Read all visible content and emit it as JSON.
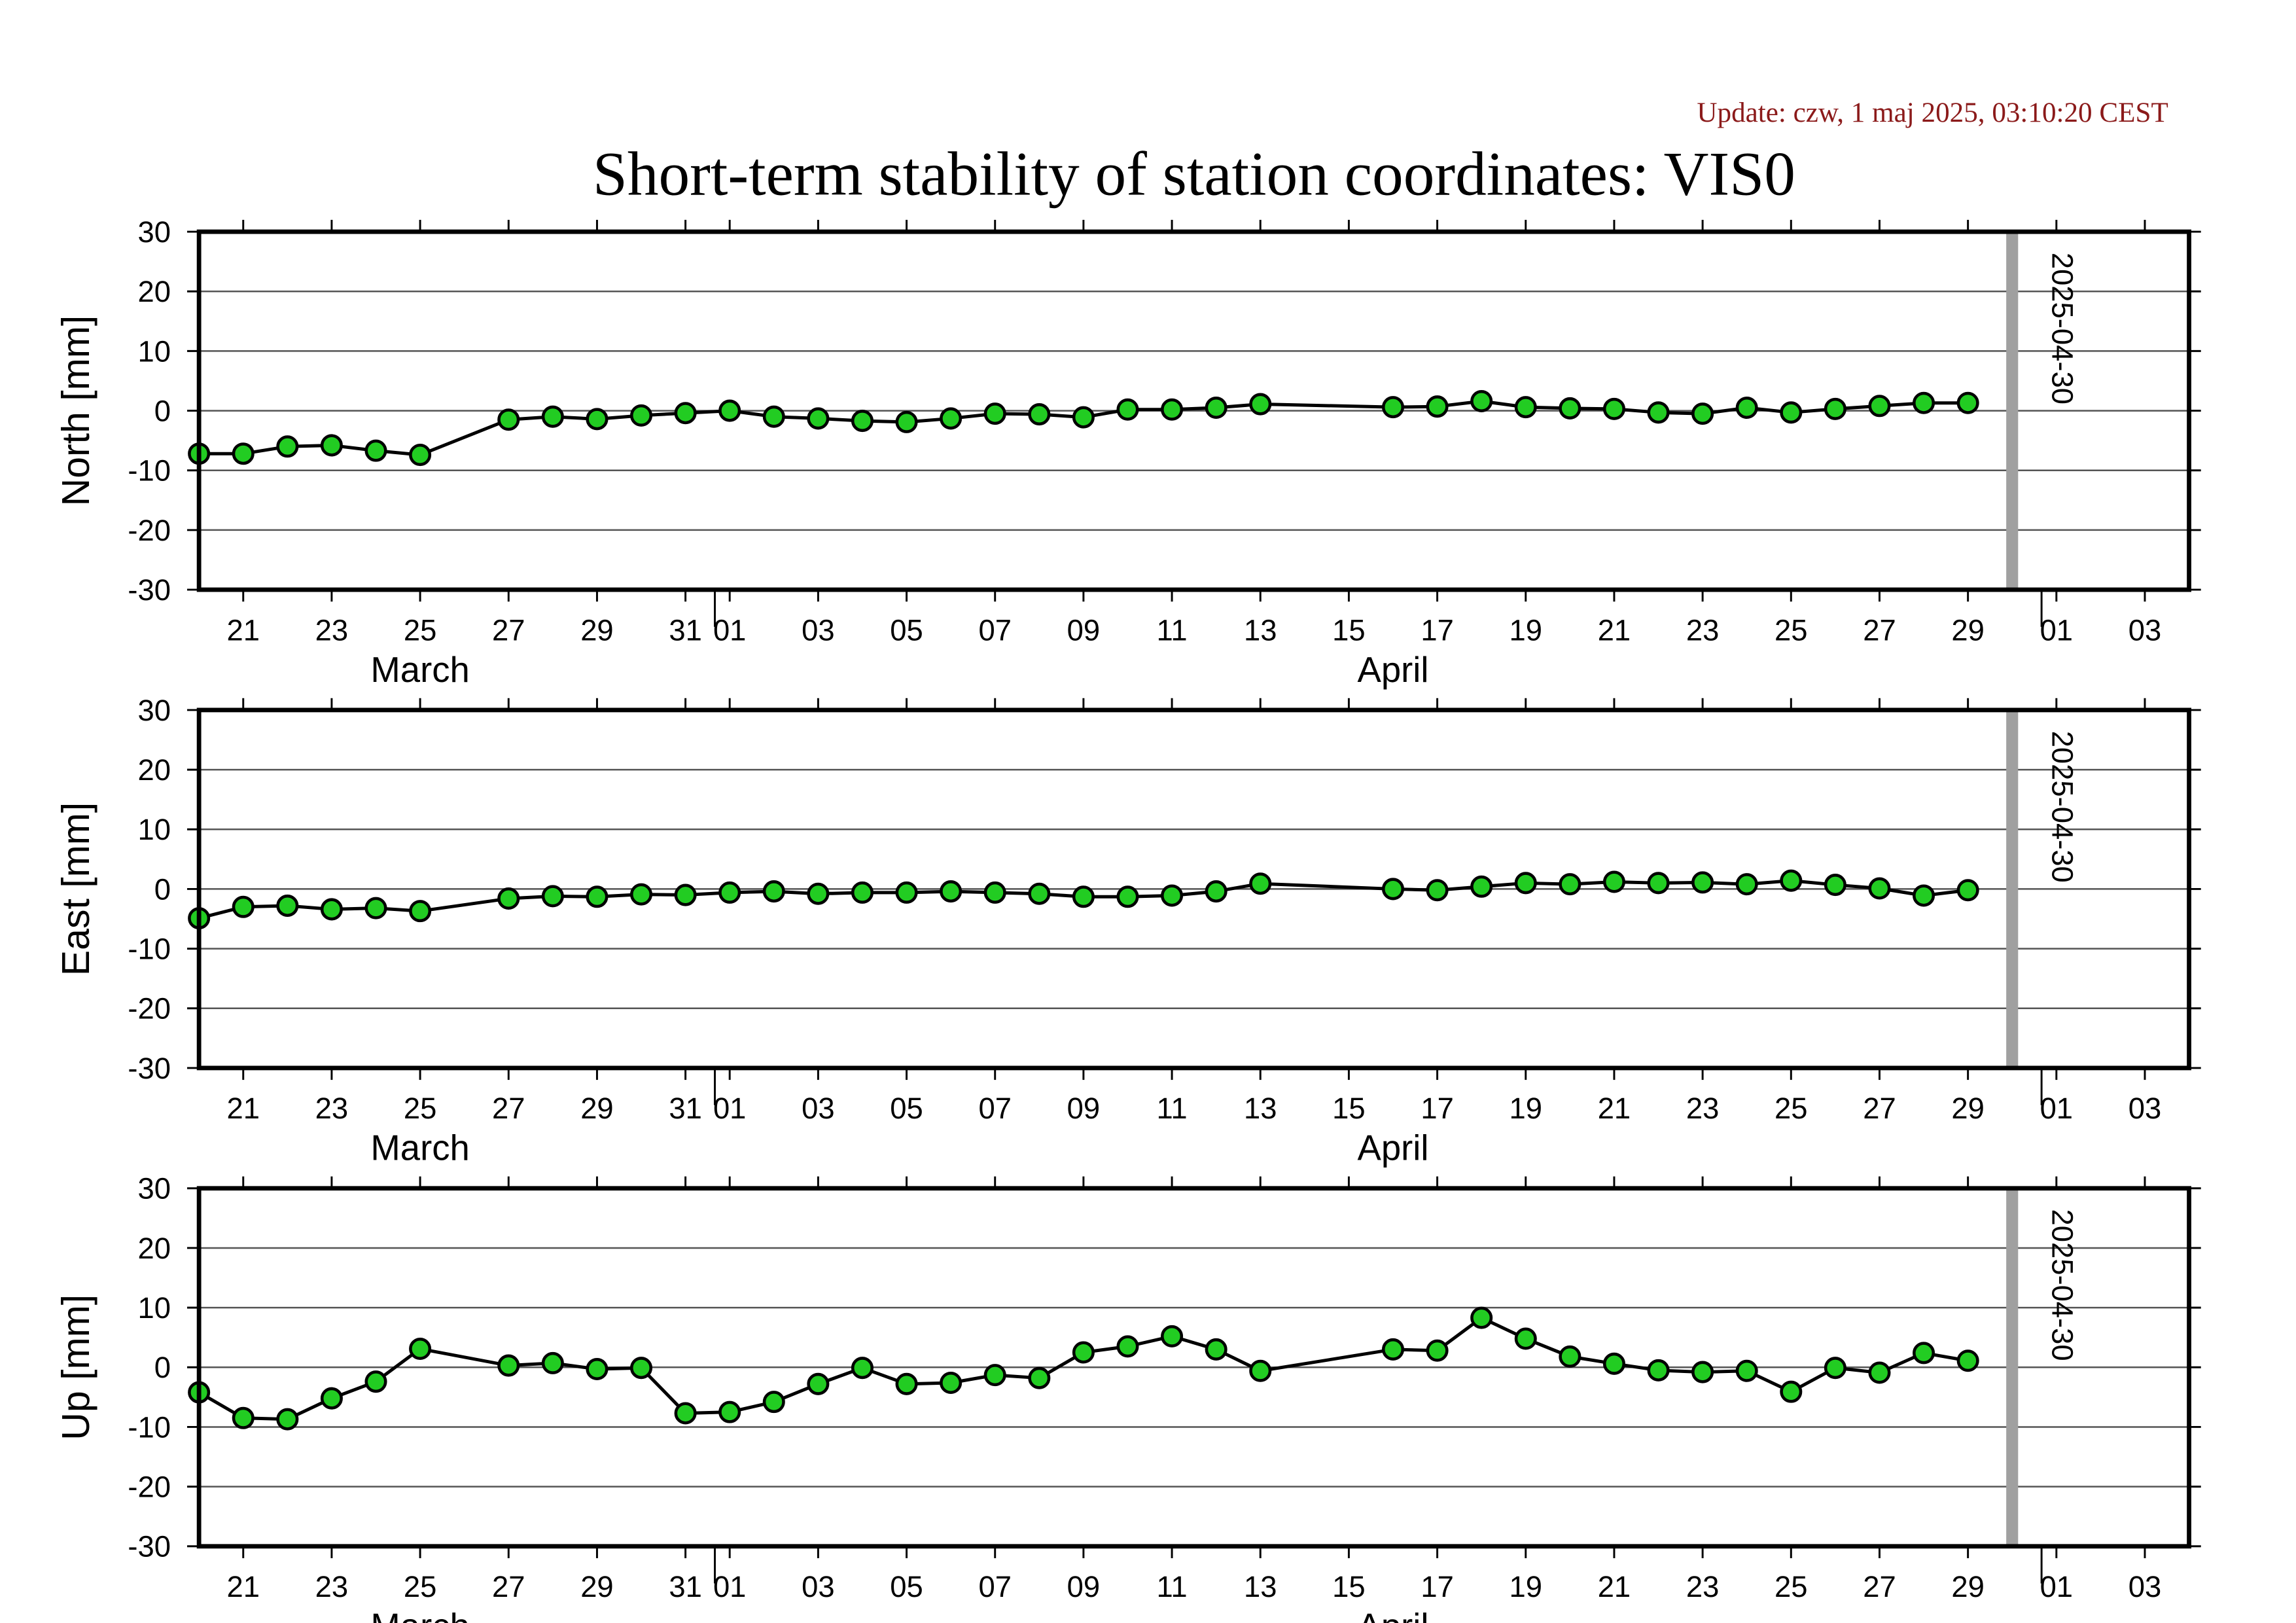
{
  "update_text": "Update: czw, 1 maj 2025, 03:10:20 CEST",
  "title": "Short-term stability of station coordinates: VIS0",
  "colors": {
    "update": "#8b1a1a",
    "marker_fill": "#22cc22",
    "marker_stroke": "#000000",
    "line": "#000000",
    "grid": "#555555",
    "marker_band": "#a0a0a0"
  },
  "x_axis": {
    "start": "2025-03-20",
    "end": "2025-05-04",
    "tick_dates": [
      "2025-03-21",
      "2025-03-23",
      "2025-03-25",
      "2025-03-27",
      "2025-03-29",
      "2025-03-31",
      "2025-04-01",
      "2025-04-03",
      "2025-04-05",
      "2025-04-07",
      "2025-04-09",
      "2025-04-11",
      "2025-04-13",
      "2025-04-15",
      "2025-04-17",
      "2025-04-19",
      "2025-04-21",
      "2025-04-23",
      "2025-04-25",
      "2025-04-27",
      "2025-04-29",
      "2025-05-01",
      "2025-05-03"
    ],
    "tick_labels": [
      "21",
      "23",
      "25",
      "27",
      "29",
      "31",
      "01",
      "03",
      "05",
      "07",
      "09",
      "11",
      "13",
      "15",
      "17",
      "19",
      "21",
      "23",
      "25",
      "27",
      "29",
      "01",
      "03"
    ],
    "month_labels": [
      {
        "date": "2025-03-25",
        "label": "March"
      },
      {
        "date": "2025-04-16",
        "label": "April"
      }
    ],
    "month_boundaries": [
      "2025-04-01",
      "2025-05-01"
    ]
  },
  "vertical_marker": {
    "date": "2025-04-30",
    "label": "2025-04-30"
  },
  "chart_data": [
    {
      "type": "line",
      "ylabel": "North [mm]",
      "ylim": [
        -30,
        30
      ],
      "yticks": [
        30,
        20,
        10,
        0,
        -10,
        -20,
        -30
      ],
      "grid": true,
      "x": [
        "2025-03-20",
        "2025-03-21",
        "2025-03-22",
        "2025-03-23",
        "2025-03-24",
        "2025-03-25",
        "2025-03-27",
        "2025-03-28",
        "2025-03-29",
        "2025-03-30",
        "2025-03-31",
        "2025-04-01",
        "2025-04-02",
        "2025-04-03",
        "2025-04-04",
        "2025-04-05",
        "2025-04-06",
        "2025-04-07",
        "2025-04-08",
        "2025-04-09",
        "2025-04-10",
        "2025-04-11",
        "2025-04-12",
        "2025-04-13",
        "2025-04-16",
        "2025-04-17",
        "2025-04-18",
        "2025-04-19",
        "2025-04-20",
        "2025-04-21",
        "2025-04-22",
        "2025-04-23",
        "2025-04-24",
        "2025-04-25",
        "2025-04-26",
        "2025-04-27",
        "2025-04-28",
        "2025-04-29"
      ],
      "values": [
        -7.2,
        -7.2,
        -6.0,
        -5.8,
        -6.7,
        -7.4,
        -1.5,
        -1.0,
        -1.4,
        -0.8,
        -0.4,
        0.0,
        -1.0,
        -1.3,
        -1.7,
        -1.9,
        -1.3,
        -0.5,
        -0.6,
        -1.1,
        0.2,
        0.2,
        0.5,
        1.1,
        0.6,
        0.7,
        1.6,
        0.6,
        0.4,
        0.3,
        -0.3,
        -0.5,
        0.5,
        -0.3,
        0.3,
        0.8,
        1.3,
        1.3
      ]
    },
    {
      "type": "line",
      "ylabel": "East [mm]",
      "ylim": [
        -30,
        30
      ],
      "yticks": [
        30,
        20,
        10,
        0,
        -10,
        -20,
        -30
      ],
      "grid": true,
      "x": [
        "2025-03-20",
        "2025-03-21",
        "2025-03-22",
        "2025-03-23",
        "2025-03-24",
        "2025-03-25",
        "2025-03-27",
        "2025-03-28",
        "2025-03-29",
        "2025-03-30",
        "2025-03-31",
        "2025-04-01",
        "2025-04-02",
        "2025-04-03",
        "2025-04-04",
        "2025-04-05",
        "2025-04-06",
        "2025-04-07",
        "2025-04-08",
        "2025-04-09",
        "2025-04-10",
        "2025-04-11",
        "2025-04-12",
        "2025-04-13",
        "2025-04-16",
        "2025-04-17",
        "2025-04-18",
        "2025-04-19",
        "2025-04-20",
        "2025-04-21",
        "2025-04-22",
        "2025-04-23",
        "2025-04-24",
        "2025-04-25",
        "2025-04-26",
        "2025-04-27",
        "2025-04-28",
        "2025-04-29"
      ],
      "values": [
        -4.9,
        -3.0,
        -2.8,
        -3.4,
        -3.2,
        -3.7,
        -1.6,
        -1.2,
        -1.3,
        -0.9,
        -1.0,
        -0.6,
        -0.4,
        -0.8,
        -0.6,
        -0.6,
        -0.4,
        -0.6,
        -0.8,
        -1.3,
        -1.3,
        -1.1,
        -0.4,
        0.9,
        0.0,
        -0.2,
        0.4,
        1.0,
        0.8,
        1.2,
        1.0,
        1.1,
        0.8,
        1.4,
        0.7,
        0.1,
        -1.1,
        -0.2
      ]
    },
    {
      "type": "line",
      "ylabel": "Up [mm]",
      "ylim": [
        -30,
        30
      ],
      "yticks": [
        30,
        20,
        10,
        0,
        -10,
        -20,
        -30
      ],
      "grid": true,
      "x": [
        "2025-03-20",
        "2025-03-21",
        "2025-03-22",
        "2025-03-23",
        "2025-03-24",
        "2025-03-25",
        "2025-03-27",
        "2025-03-28",
        "2025-03-29",
        "2025-03-30",
        "2025-03-31",
        "2025-04-01",
        "2025-04-02",
        "2025-04-03",
        "2025-04-04",
        "2025-04-05",
        "2025-04-06",
        "2025-04-07",
        "2025-04-08",
        "2025-04-09",
        "2025-04-10",
        "2025-04-11",
        "2025-04-12",
        "2025-04-13",
        "2025-04-16",
        "2025-04-17",
        "2025-04-18",
        "2025-04-19",
        "2025-04-20",
        "2025-04-21",
        "2025-04-22",
        "2025-04-23",
        "2025-04-24",
        "2025-04-25",
        "2025-04-26",
        "2025-04-27",
        "2025-04-28",
        "2025-04-29"
      ],
      "values": [
        -4.2,
        -8.5,
        -8.7,
        -5.2,
        -2.4,
        3.1,
        0.3,
        0.7,
        -0.3,
        -0.1,
        -7.7,
        -7.5,
        -5.8,
        -2.8,
        -0.1,
        -2.8,
        -2.6,
        -1.3,
        -1.8,
        2.5,
        3.5,
        5.2,
        3.0,
        -0.6,
        3.0,
        2.8,
        8.3,
        4.8,
        1.8,
        0.6,
        -0.5,
        -0.8,
        -0.6,
        -4.1,
        -0.1,
        -0.9,
        2.4,
        1.1
      ]
    }
  ]
}
